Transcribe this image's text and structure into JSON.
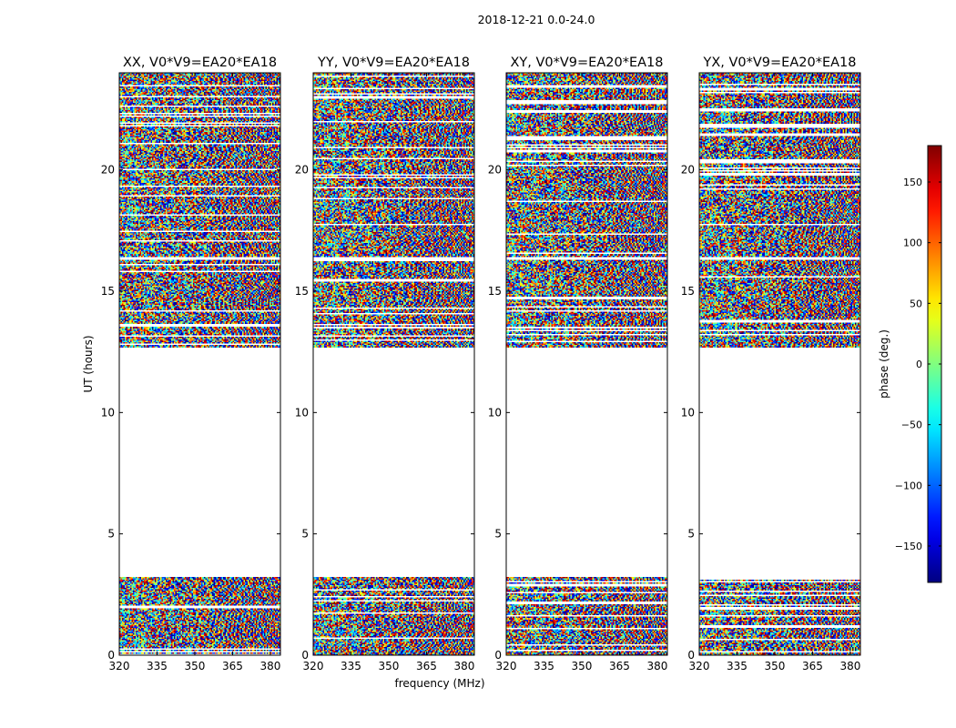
{
  "chart_data": {
    "type": "heatmap",
    "suptitle": "2018-12-21 0.0-24.0",
    "xlabel": "frequency (MHz)",
    "ylabel": "UT (hours)",
    "xlim": [
      320,
      384
    ],
    "ylim": [
      0,
      24
    ],
    "xticks": [
      320,
      335,
      350,
      365,
      380
    ],
    "yticks": [
      0,
      5,
      10,
      15,
      20
    ],
    "panels": [
      {
        "title": "XX, V0*V9=EA20*EA18",
        "pol": "XX"
      },
      {
        "title": "YY, V0*V9=EA20*EA18",
        "pol": "YY"
      },
      {
        "title": "XY, V0*V9=EA20*EA18",
        "pol": "XY"
      },
      {
        "title": "YX, V0*V9=EA20*EA18",
        "pol": "YX"
      }
    ],
    "data_blocks_ut": [
      [
        0.0,
        3.2
      ],
      [
        12.7,
        16.3
      ],
      [
        16.4,
        24.0
      ]
    ],
    "colorbar": {
      "label": "phase (deg.)",
      "range": [
        -180,
        180
      ],
      "ticks": [
        -150,
        -100,
        -50,
        0,
        50,
        100,
        150
      ],
      "tick_labels": [
        "−150",
        "−100",
        "−50",
        "0",
        "50",
        "100",
        "150"
      ],
      "colormap": "jet"
    }
  }
}
